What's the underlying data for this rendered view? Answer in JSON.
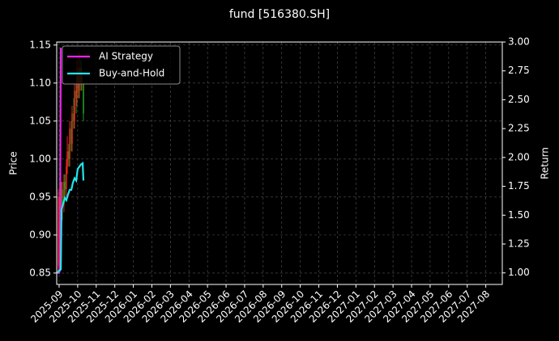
{
  "chart_data": {
    "type": "candlestick",
    "title": "fund [516380.SH]",
    "y_label": "Price",
    "y2_label": "Return",
    "xlim": [
      -0.13,
      23.89
    ],
    "xticks": [
      {
        "value": 0,
        "label": "2025-09"
      },
      {
        "value": 1,
        "label": "2025-10"
      },
      {
        "value": 2,
        "label": "2025-11"
      },
      {
        "value": 3,
        "label": "2025-12"
      },
      {
        "value": 4,
        "label": "2026-01"
      },
      {
        "value": 5,
        "label": "2026-02"
      },
      {
        "value": 6,
        "label": "2026-03"
      },
      {
        "value": 7,
        "label": "2026-04"
      },
      {
        "value": 8,
        "label": "2026-05"
      },
      {
        "value": 9,
        "label": "2026-06"
      },
      {
        "value": 10,
        "label": "2026-07"
      },
      {
        "value": 11,
        "label": "2026-08"
      },
      {
        "value": 12,
        "label": "2026-09"
      },
      {
        "value": 13,
        "label": "2026-10"
      },
      {
        "value": 14,
        "label": "2026-11"
      },
      {
        "value": 15,
        "label": "2026-12"
      },
      {
        "value": 16,
        "label": "2027-01"
      },
      {
        "value": 17,
        "label": "2027-02"
      },
      {
        "value": 18,
        "label": "2027-03"
      },
      {
        "value": 19,
        "label": "2027-04"
      },
      {
        "value": 20,
        "label": "2027-05"
      },
      {
        "value": 21,
        "label": "2027-06"
      },
      {
        "value": 22,
        "label": "2027-07"
      },
      {
        "value": 23,
        "label": "2027-08"
      }
    ],
    "ylim": [
      0.835,
      1.154
    ],
    "yticks": [
      {
        "value": 0.85,
        "label": "0.85"
      },
      {
        "value": 0.9,
        "label": "0.90"
      },
      {
        "value": 0.95,
        "label": "0.95"
      },
      {
        "value": 1.0,
        "label": "1.00"
      },
      {
        "value": 1.05,
        "label": "1.05"
      },
      {
        "value": 1.1,
        "label": "1.10"
      },
      {
        "value": 1.15,
        "label": "1.15"
      }
    ],
    "y2lim": [
      0.9,
      3.0
    ],
    "y2ticks": [
      {
        "value": 1.0,
        "label": "1.00"
      },
      {
        "value": 1.25,
        "label": "1.25"
      },
      {
        "value": 1.5,
        "label": "1.50"
      },
      {
        "value": 1.75,
        "label": "1.75"
      },
      {
        "value": 2.0,
        "label": "2.00"
      },
      {
        "value": 2.25,
        "label": "2.25"
      },
      {
        "value": 2.5,
        "label": "2.50"
      },
      {
        "value": 2.75,
        "label": "2.75"
      },
      {
        "value": 3.0,
        "label": "3.00"
      }
    ],
    "grid": true,
    "legend": "upper-left",
    "up_color": "#e8251d",
    "down_color": "#1f9e1f",
    "x": [
      -0.04,
      0.04,
      0.13,
      0.17,
      0.26,
      0.31,
      0.39,
      0.44,
      0.52,
      0.57,
      0.66,
      0.7,
      0.79,
      0.83,
      0.92,
      0.96,
      1.05,
      1.09,
      1.18,
      1.22,
      1.31
    ],
    "open": [
      0.86,
      0.95,
      0.93,
      0.96,
      0.94,
      0.97,
      0.96,
      0.99,
      1.01,
      1.0,
      1.04,
      1.02,
      1.06,
      1.05,
      1.09,
      1.08,
      1.11,
      1.09,
      1.12,
      1.1,
      1.1
    ],
    "high": [
      0.96,
      0.96,
      0.97,
      0.97,
      0.98,
      0.98,
      1.0,
      1.03,
      1.02,
      1.05,
      1.05,
      1.07,
      1.08,
      1.1,
      1.1,
      1.13,
      1.12,
      1.14,
      1.13,
      1.12,
      1.1
    ],
    "low": [
      0.85,
      0.92,
      0.93,
      0.92,
      0.93,
      0.95,
      0.95,
      0.98,
      0.99,
      0.99,
      1.01,
      1.01,
      1.04,
      1.04,
      1.06,
      1.07,
      1.08,
      1.08,
      1.09,
      1.09,
      1.05
    ],
    "close": [
      0.95,
      0.93,
      0.96,
      0.94,
      0.97,
      0.96,
      0.99,
      1.01,
      1.0,
      1.04,
      1.02,
      1.06,
      1.05,
      1.09,
      1.08,
      1.11,
      1.09,
      1.12,
      1.1,
      1.11,
      1.06
    ],
    "series": [
      {
        "name": "AI Strategy",
        "color": "#ee22ee",
        "axis": "y2",
        "x": [
          -0.09,
          0.0,
          0.04,
          0.09
        ],
        "values": [
          1.0,
          1.0,
          1.02,
          2.95
        ]
      },
      {
        "name": "Buy-and-Hold",
        "color": "#22e6ee",
        "axis": "y2",
        "x": [
          -0.09,
          0.0,
          0.09,
          0.13,
          0.22,
          0.31,
          0.39,
          0.48,
          0.57,
          0.66,
          0.74,
          0.83,
          0.92,
          1.0,
          1.09,
          1.18,
          1.27,
          1.31
        ],
        "values": [
          1.0,
          1.02,
          1.03,
          1.55,
          1.6,
          1.65,
          1.63,
          1.68,
          1.72,
          1.72,
          1.78,
          1.82,
          1.8,
          1.9,
          1.92,
          1.94,
          1.95,
          1.8
        ]
      }
    ]
  }
}
